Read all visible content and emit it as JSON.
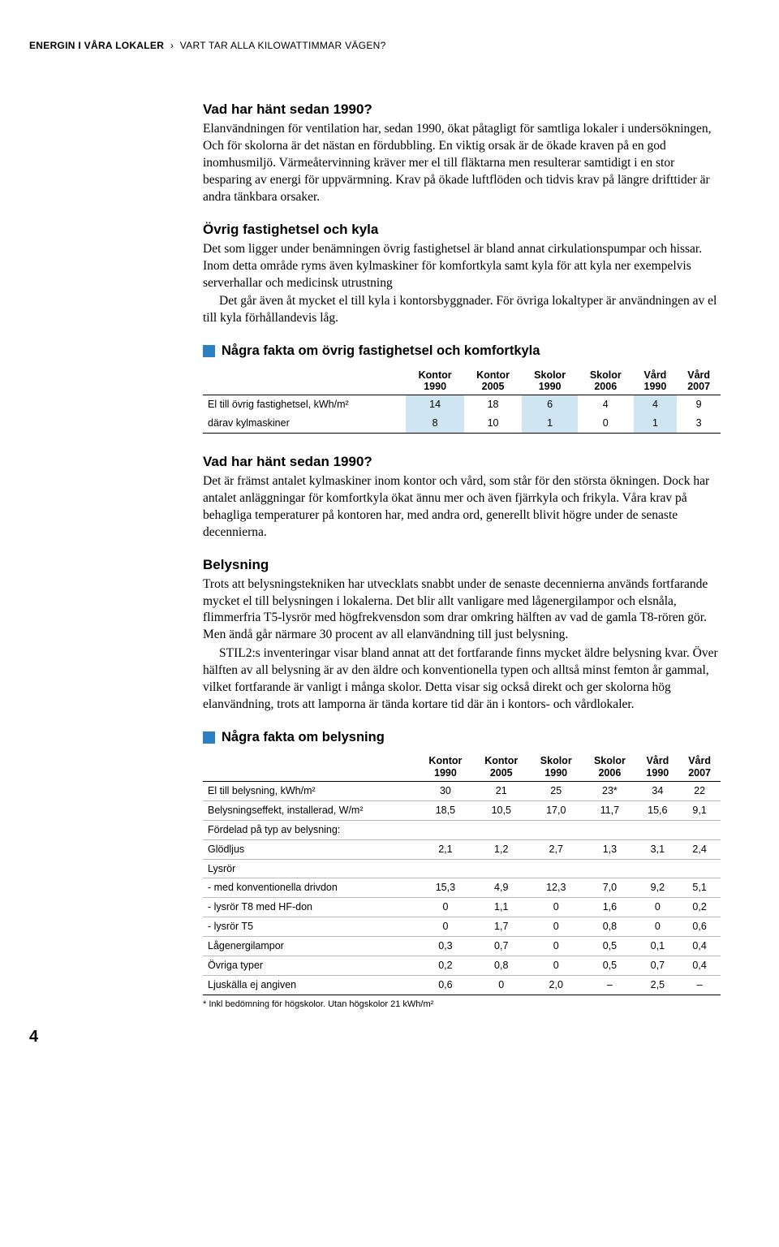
{
  "runhead": {
    "bold": "ENERGIN I VÅRA LOKALER",
    "light": "VART TAR ALLA KILOWATTIMMAR VÄGEN?",
    "chev": "›"
  },
  "colors": {
    "accent_square": "#2e7fbf",
    "highlight_bg": "#cfe6f2",
    "rule": "#000000",
    "rule_light": "#bbbbbb",
    "background": "#ffffff",
    "text": "#000000"
  },
  "sec1": {
    "title": "Vad har hänt sedan 1990?",
    "body": "Elanvändningen för ventilation har, sedan 1990, ökat påtagligt för samtliga lokaler i undersökningen, Och för skolorna är det nästan en fördubbling. En viktig orsak är de ökade kraven på en god inomhusmiljö. Värmeåtervinning kräver mer el till fläktarna men resulterar samtidigt i en stor besparing av energi för uppvärmning. Krav på ökade luftflöden och tidvis krav på längre drifttider är andra tänkbara orsaker."
  },
  "sec2": {
    "title": "Övrig fastighetsel och kyla",
    "body1": "Det som ligger under benämningen övrig fastighetsel är bland annat cirkulationspumpar och hissar. Inom detta område ryms även kylmaskiner för komfortkyla samt kyla för att kyla ner exempelvis serverhallar och medicinsk utrustning",
    "body2": "Det går även åt mycket el till kyla i kontorsbyggnader. För övriga lokaltyper är användningen av el till kyla förhållandevis låg."
  },
  "table1": {
    "title": "Några fakta om övrig fastighetsel och komfortkyla",
    "columns": [
      {
        "l1": "",
        "l2": ""
      },
      {
        "l1": "Kontor",
        "l2": "1990"
      },
      {
        "l1": "Kontor",
        "l2": "2005"
      },
      {
        "l1": "Skolor",
        "l2": "1990"
      },
      {
        "l1": "Skolor",
        "l2": "2006"
      },
      {
        "l1": "Vård",
        "l2": "1990"
      },
      {
        "l1": "Vård",
        "l2": "2007"
      }
    ],
    "rows": [
      {
        "label": "El till övrig fastighetsel, kWh/m²",
        "v": [
          "14",
          "18",
          "6",
          "4",
          "4",
          "9"
        ]
      },
      {
        "label": "därav kylmaskiner",
        "v": [
          "8",
          "10",
          "1",
          "0",
          "1",
          "3"
        ]
      }
    ],
    "highlight_cols": [
      1,
      3,
      5
    ]
  },
  "sec3": {
    "title": "Vad har hänt sedan 1990?",
    "body": "Det är främst antalet kylmaskiner inom kontor och vård, som står för den största ökningen. Dock har antalet anläggningar för komfortkyla ökat ännu mer och även fjärrkyla och frikyla. Våra krav på behagliga temperaturer på kontoren har, med andra ord, generellt blivit högre under de senaste decennierna."
  },
  "sec4": {
    "title": "Belysning",
    "body1": "Trots att belysningstekniken har utvecklats snabbt under de senaste decennierna används fortfarande mycket el till belysningen i lokalerna. Det blir allt vanligare med lågenergilampor och elsnåla, flimmerfria T5-lysrör med högfrekvensdon som drar omkring hälften av vad de gamla T8-rören gör. Men ändå går närmare 30 procent av all elanvändning till just belysning.",
    "body2": "STIL2:s inventeringar visar bland annat att det fortfarande finns mycket äldre belysning kvar. Över hälften av all belysning är av den äldre och konventionella typen och alltså minst femton år gammal, vilket fortfarande är vanligt i många skolor. Detta visar sig också direkt och ger skolorna hög elanvändning, trots att lamporna är tända kortare tid där än i kontors- och vårdlokaler."
  },
  "table2": {
    "title": "Några fakta om belysning",
    "columns": [
      {
        "l1": "",
        "l2": ""
      },
      {
        "l1": "Kontor",
        "l2": "1990"
      },
      {
        "l1": "Kontor",
        "l2": "2005"
      },
      {
        "l1": "Skolor",
        "l2": "1990"
      },
      {
        "l1": "Skolor",
        "l2": "2006"
      },
      {
        "l1": "Vård",
        "l2": "1990"
      },
      {
        "l1": "Vård",
        "l2": "2007"
      }
    ],
    "rows": [
      {
        "label": "El till belysning, kWh/m²",
        "v": [
          "30",
          "21",
          "25",
          "23*",
          "34",
          "22"
        ]
      },
      {
        "label": "Belysningseffekt, installerad, W/m²",
        "v": [
          "18,5",
          "10,5",
          "17,0",
          "11,7",
          "15,6",
          "9,1"
        ]
      },
      {
        "label": "Fördelad på typ av belysning:",
        "v": [
          "",
          "",
          "",
          "",
          "",
          ""
        ]
      },
      {
        "label": "Glödljus",
        "v": [
          "2,1",
          "1,2",
          "2,7",
          "1,3",
          "3,1",
          "2,4"
        ]
      },
      {
        "label": "Lysrör",
        "v": [
          "",
          "",
          "",
          "",
          "",
          ""
        ]
      },
      {
        "label": " - med konventionella drivdon",
        "v": [
          "15,3",
          "4,9",
          "12,3",
          "7,0",
          "9,2",
          "5,1"
        ]
      },
      {
        "label": " - lysrör T8 med HF-don",
        "v": [
          "0",
          "1,1",
          "0",
          "1,6",
          "0",
          "0,2"
        ]
      },
      {
        "label": " - lysrör T5",
        "v": [
          "0",
          "1,7",
          "0",
          "0,8",
          "0",
          "0,6"
        ]
      },
      {
        "label": "Lågenergilampor",
        "v": [
          "0,3",
          "0,7",
          "0",
          "0,5",
          "0,1",
          "0,4"
        ]
      },
      {
        "label": "Övriga typer",
        "v": [
          "0,2",
          "0,8",
          "0",
          "0,5",
          "0,7",
          "0,4"
        ]
      },
      {
        "label": "Ljuskälla ej angiven",
        "v": [
          "0,6",
          "0",
          "2,0",
          "–",
          "2,5",
          "–"
        ]
      }
    ],
    "footnote": "* Inkl bedömning för högskolor. Utan högskolor 21 kWh/m²"
  },
  "page_number": "4"
}
